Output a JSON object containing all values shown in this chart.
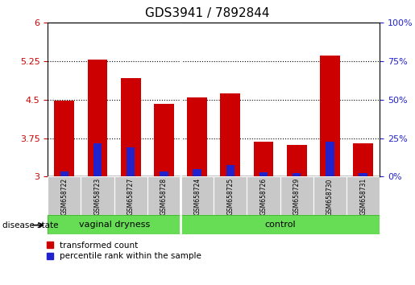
{
  "title": "GDS3941 / 7892844",
  "samples": [
    "GSM658722",
    "GSM658723",
    "GSM658727",
    "GSM658728",
    "GSM658724",
    "GSM658725",
    "GSM658726",
    "GSM658729",
    "GSM658730",
    "GSM658731"
  ],
  "red_values": [
    4.48,
    5.28,
    4.92,
    4.42,
    4.55,
    4.63,
    3.68,
    3.62,
    5.36,
    3.65
  ],
  "blue_values": [
    3.1,
    3.65,
    3.58,
    3.1,
    3.15,
    3.22,
    3.08,
    3.07,
    3.68,
    3.07
  ],
  "ylim_left": [
    3.0,
    6.0
  ],
  "ylim_right": [
    0,
    100
  ],
  "yticks_left": [
    3.0,
    3.75,
    4.5,
    5.25,
    6.0
  ],
  "yticks_right": [
    0,
    25,
    50,
    75,
    100
  ],
  "groups": [
    {
      "label": "vaginal dryness",
      "start": 0,
      "end": 4
    },
    {
      "label": "control",
      "start": 4,
      "end": 10
    }
  ],
  "bar_width": 0.6,
  "blue_bar_width": 0.25,
  "red_color": "#CC0000",
  "blue_color": "#2222CC",
  "left_tick_color": "#CC0000",
  "right_tick_color": "#2222CC",
  "grid_yticks": [
    3.75,
    4.5,
    5.25
  ],
  "legend_red": "transformed count",
  "legend_blue": "percentile rank within the sample",
  "disease_state_label": "disease state",
  "group_fill_color": "#66DD55",
  "group_edge_color": "#44BB33",
  "xtick_bg_color": "#C8C8C8"
}
